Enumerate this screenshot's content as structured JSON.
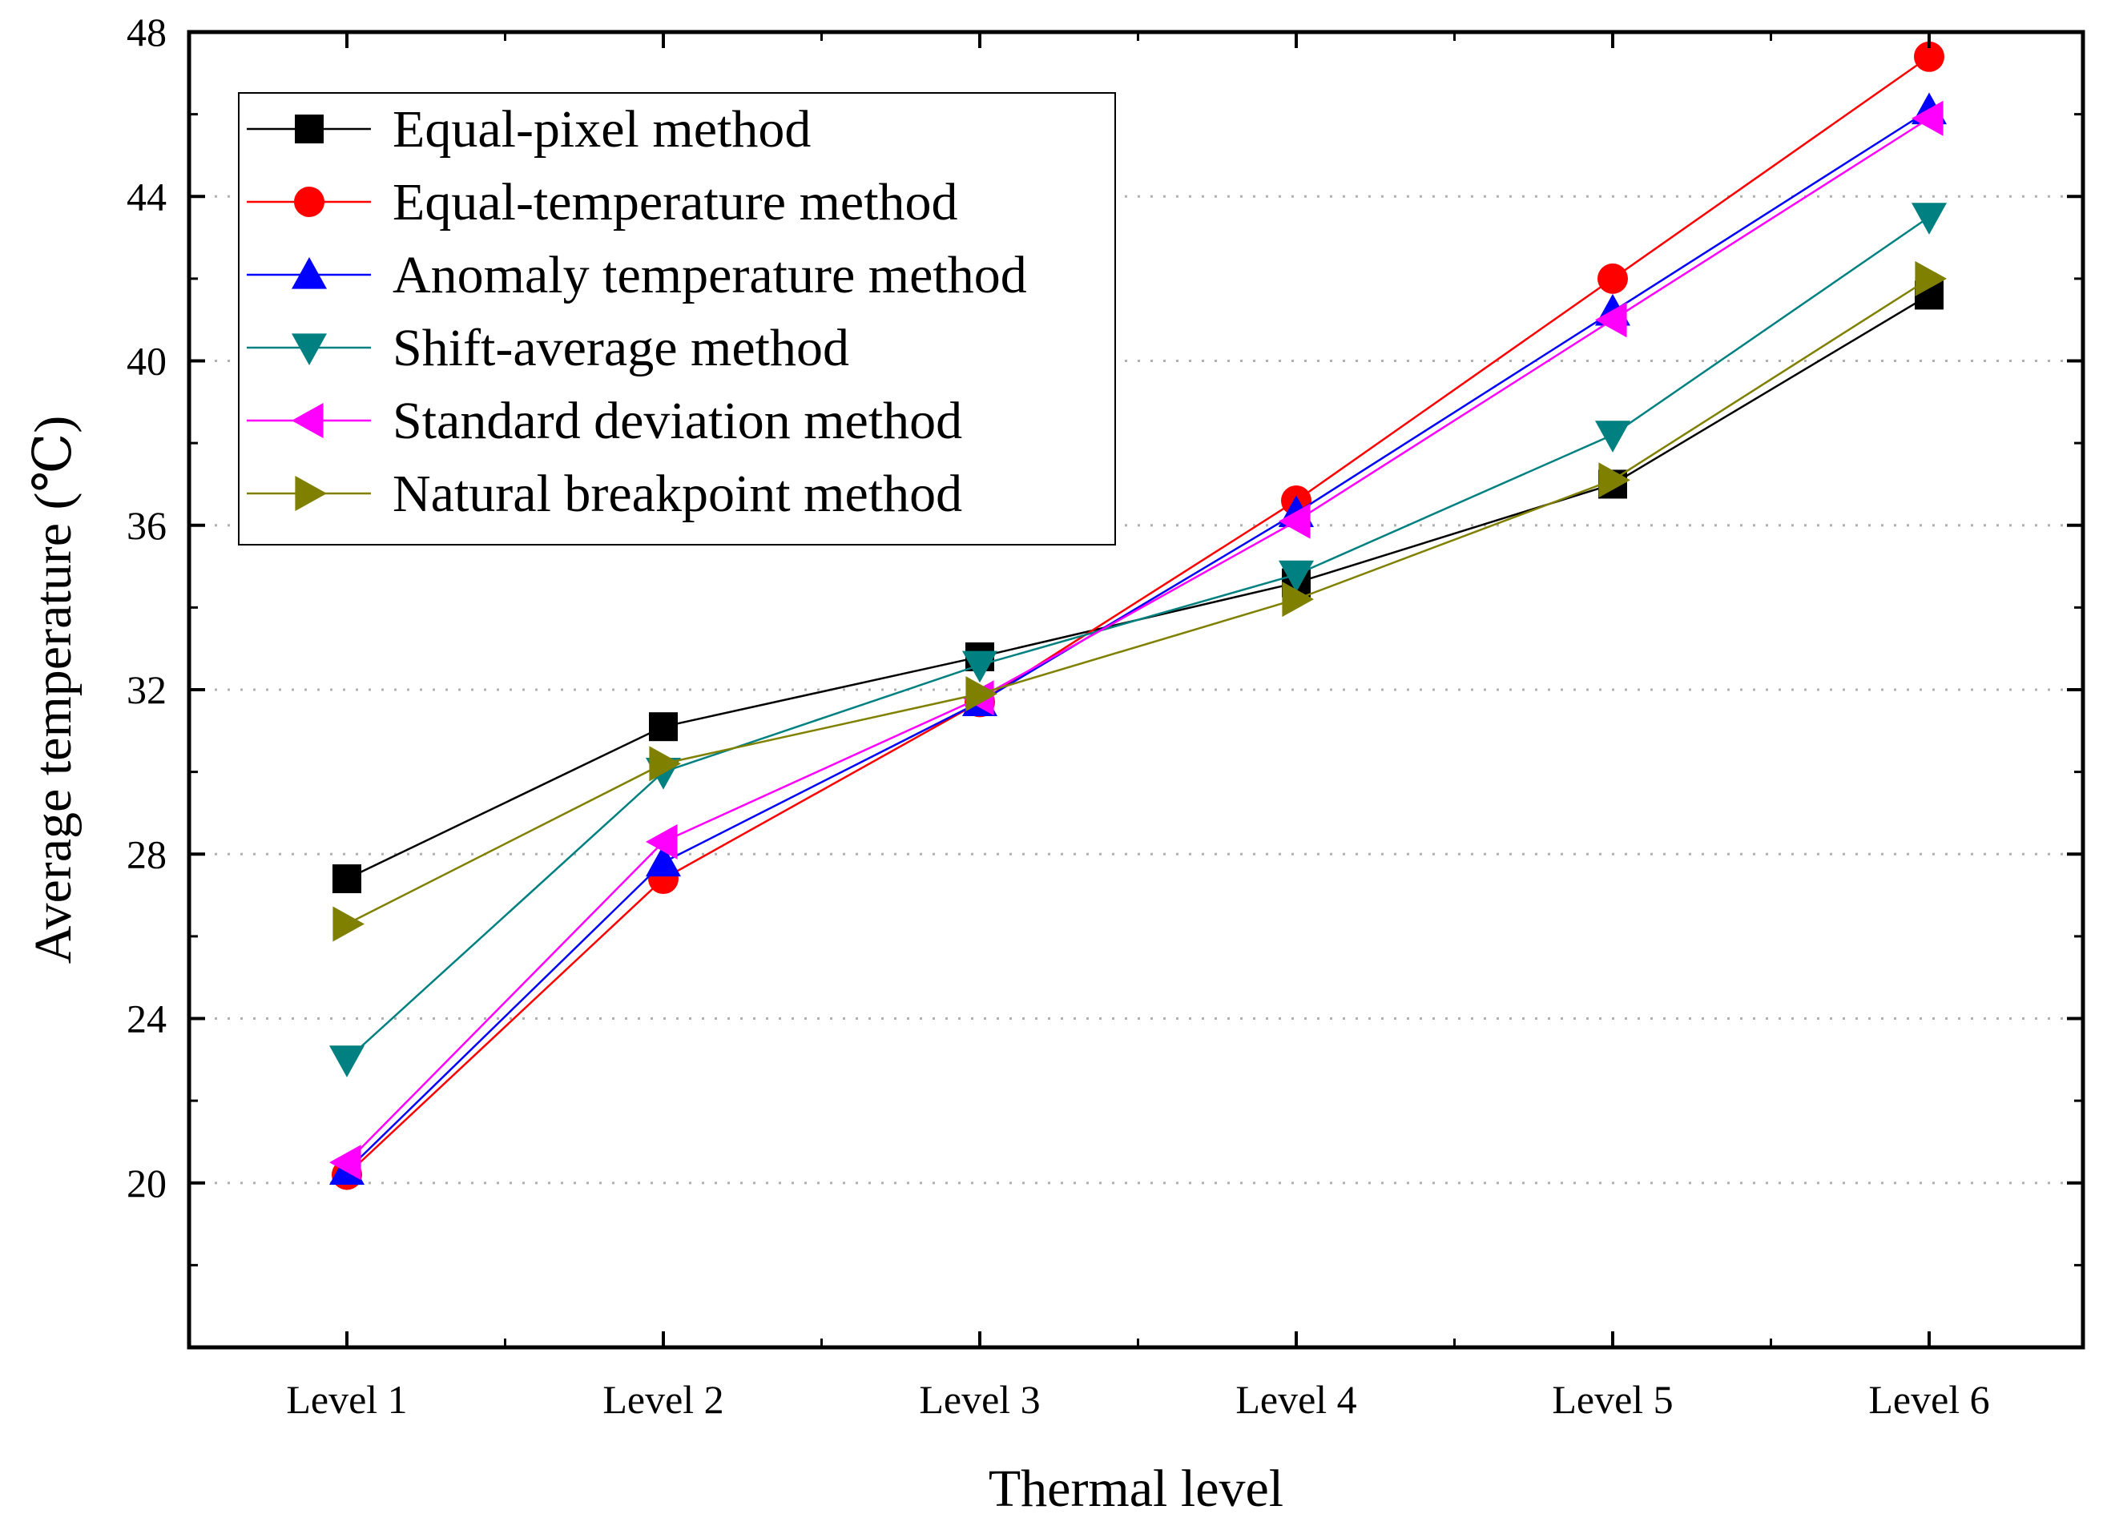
{
  "chart_data": {
    "type": "line",
    "title": "",
    "xlabel": "Thermal level",
    "ylabel": "Average temperature (℃)",
    "categories": [
      "Level 1",
      "Level 2",
      "Level 3",
      "Level 4",
      "Level 5",
      "Level 6"
    ],
    "ylim": [
      16,
      48
    ],
    "yticks": [
      20,
      24,
      28,
      32,
      36,
      40,
      44,
      48
    ],
    "ytick_labels": [
      "20",
      "24",
      "28",
      "32",
      "36",
      "40",
      "44",
      "48"
    ],
    "grid": "horizontal dotted",
    "legend_position": "top-left",
    "series": [
      {
        "name": "Equal-pixel method",
        "marker": "square",
        "color": "#000000",
        "values": [
          27.4,
          31.1,
          32.8,
          34.6,
          37.0,
          41.6
        ]
      },
      {
        "name": "Equal-temperature method",
        "marker": "circle",
        "color": "#ff0000",
        "values": [
          20.2,
          27.4,
          31.7,
          36.6,
          42.0,
          47.4
        ]
      },
      {
        "name": "Anomaly temperature method",
        "marker": "triangle-up",
        "color": "#0000ff",
        "values": [
          20.3,
          27.8,
          31.7,
          36.3,
          41.2,
          46.1
        ]
      },
      {
        "name": "Shift-average method",
        "marker": "triangle-down",
        "color": "#008080",
        "values": [
          23.0,
          30.0,
          32.6,
          34.8,
          38.2,
          43.5
        ]
      },
      {
        "name": "Standard deviation method",
        "marker": "triangle-left",
        "color": "#ff00ff",
        "values": [
          20.5,
          28.3,
          31.8,
          36.1,
          41.0,
          45.9
        ]
      },
      {
        "name": "Natural breakpoint method",
        "marker": "triangle-right",
        "color": "#808000",
        "values": [
          26.3,
          30.2,
          31.9,
          34.2,
          37.1,
          42.0
        ]
      }
    ]
  }
}
